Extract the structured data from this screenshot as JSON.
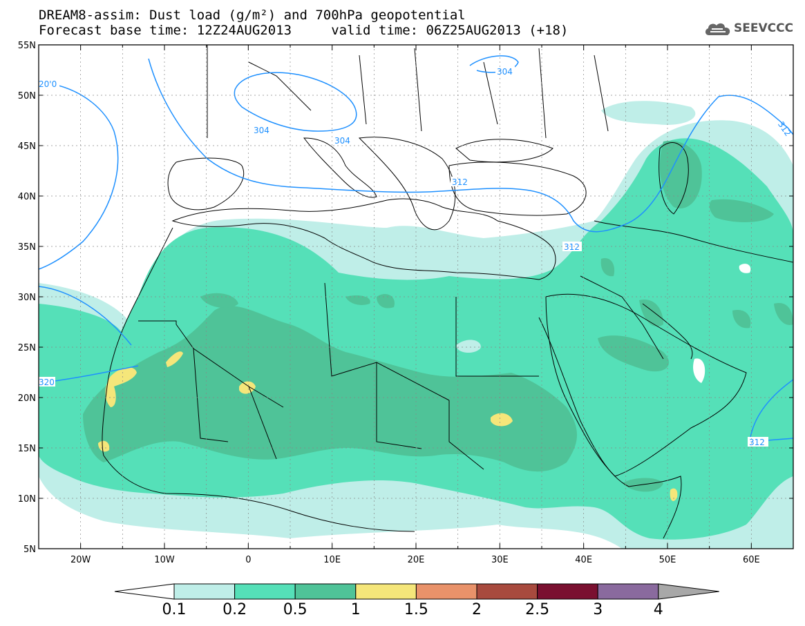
{
  "title": {
    "line1": "DREAM8-assim: Dust load (g/m²) and 700hPa geopotential",
    "line2": "Forecast base time: 12Z24AUG2013     valid time: 06Z25AUG2013 (+18)"
  },
  "logo": {
    "text": "SEEVCCC",
    "icon": "cloud-icon"
  },
  "map": {
    "lat_labels": [
      "55N",
      "50N",
      "45N",
      "40N",
      "35N",
      "30N",
      "25N",
      "20N",
      "15N",
      "10N",
      "5N"
    ],
    "lon_labels": [
      "20W",
      "10W",
      "0",
      "10E",
      "20E",
      "30E",
      "40E",
      "50E",
      "60E"
    ],
    "lon_range": [
      -25,
      65
    ],
    "lat_range": [
      5,
      55
    ],
    "contour_labels": [
      "20'0",
      "304",
      "304",
      "304",
      "312",
      "312",
      "320",
      "312",
      "312"
    ]
  },
  "colorbar": {
    "levels": [
      "0.1",
      "0.2",
      "0.5",
      "1",
      "1.5",
      "2",
      "2.5",
      "3",
      "4"
    ],
    "colors": [
      "#bfeee8",
      "#55e0b8",
      "#4fc398",
      "#f5e67a",
      "#e9926a",
      "#a84a3e",
      "#7a1030",
      "#8a6a9e"
    ],
    "under_color": "#ffffff",
    "over_color": "#a8a8a8"
  }
}
